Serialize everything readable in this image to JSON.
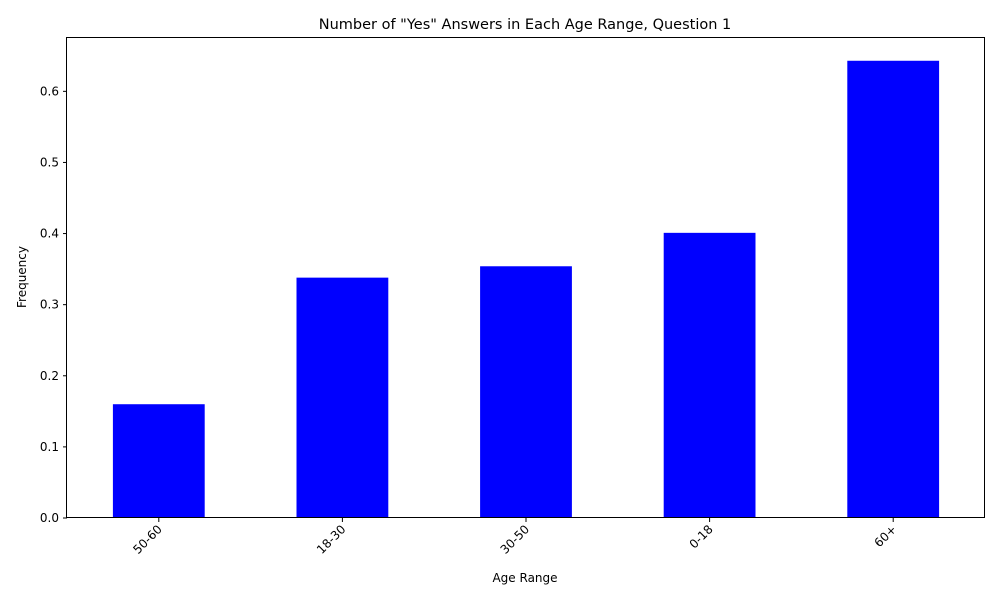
{
  "chart_data": {
    "type": "bar",
    "title": "Number of \"Yes\" Answers in Each Age Range, Question 1",
    "xlabel": "Age Range",
    "ylabel": "Frequency",
    "categories": [
      "50-60",
      "18-30",
      "30-50",
      "0-18",
      "60+"
    ],
    "values": [
      0.16,
      0.338,
      0.354,
      0.401,
      0.643
    ],
    "ylim": [
      0,
      0.675
    ],
    "yticks": [
      0.0,
      0.1,
      0.2,
      0.3,
      0.4,
      0.5,
      0.6
    ],
    "ytick_labels": [
      "0.0",
      "0.1",
      "0.2",
      "0.3",
      "0.4",
      "0.5",
      "0.6"
    ],
    "bar_color": "#0000ff",
    "grid": false,
    "legend": "none"
  }
}
